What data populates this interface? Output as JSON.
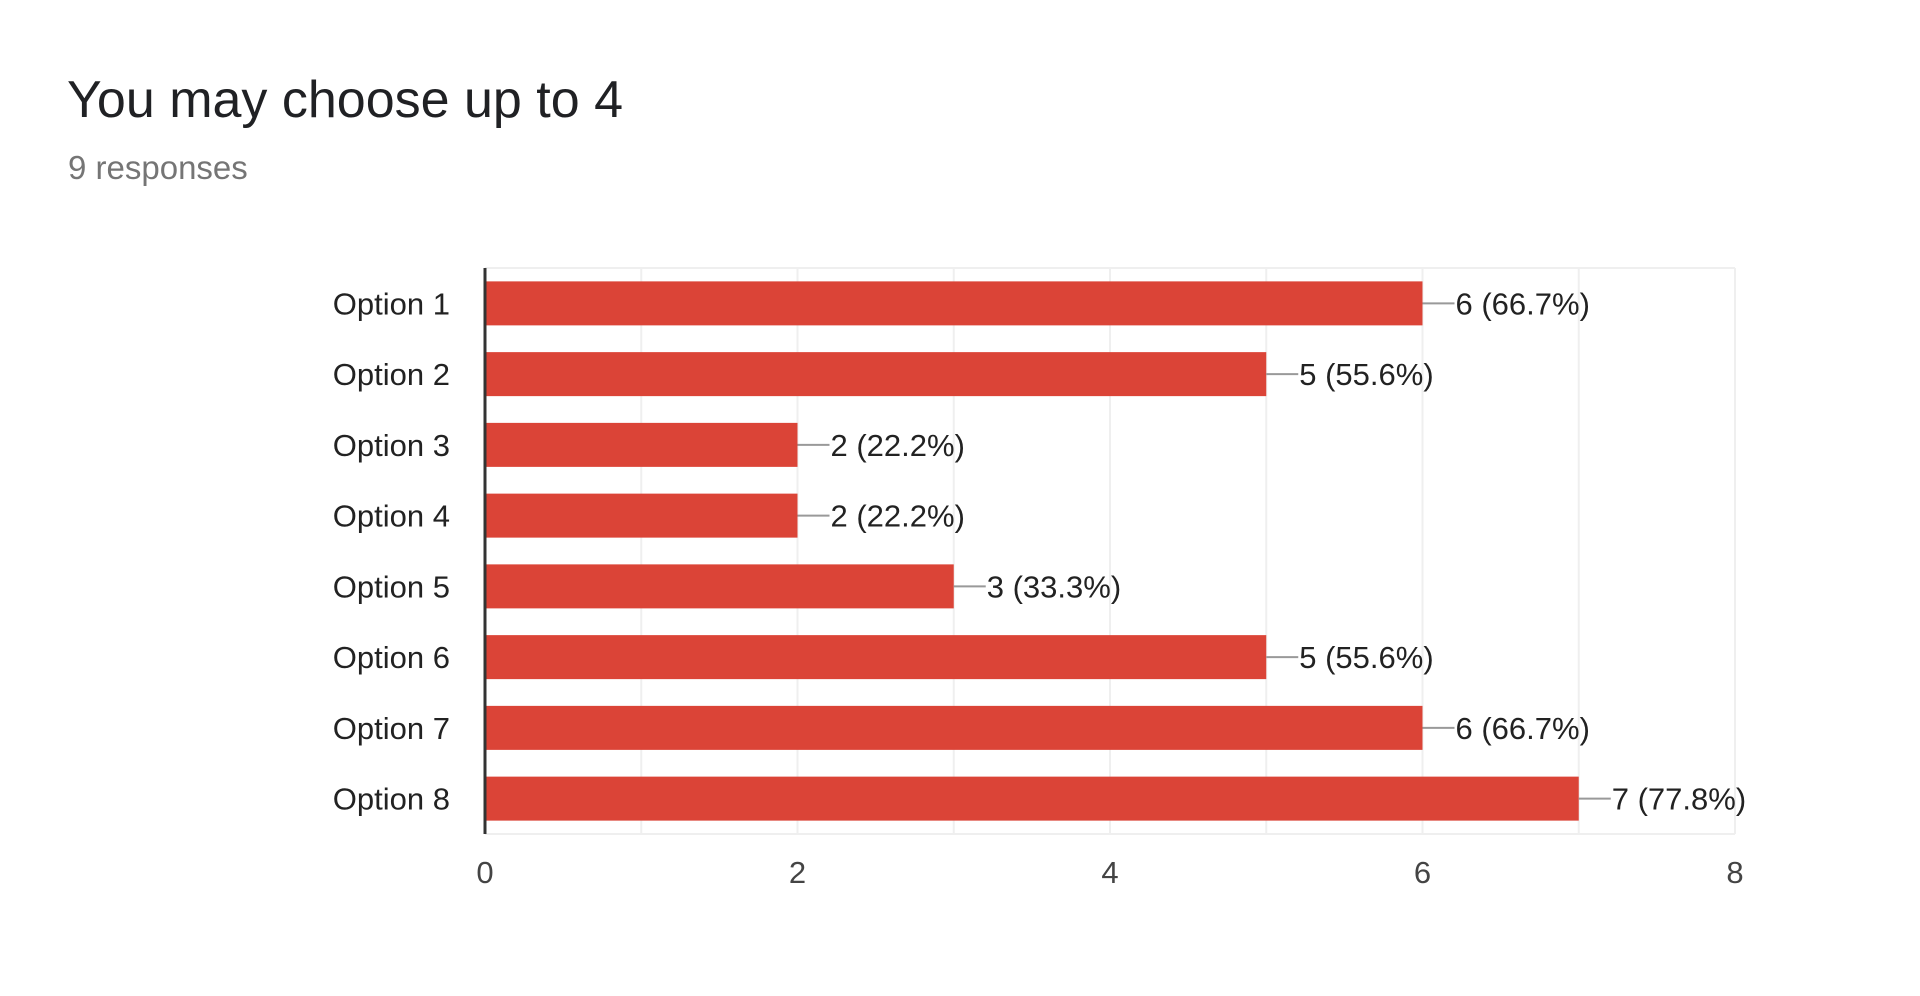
{
  "chart_data": {
    "type": "bar",
    "orientation": "horizontal",
    "title": "You may choose up to 4",
    "subtitle": "9 responses",
    "categories": [
      "Option 1",
      "Option 2",
      "Option 3",
      "Option 4",
      "Option 5",
      "Option 6",
      "Option 7",
      "Option 8"
    ],
    "values": [
      6,
      5,
      2,
      2,
      3,
      5,
      6,
      7
    ],
    "data_labels": [
      "6 (66.7%)",
      "5 (55.6%)",
      "2 (22.2%)",
      "2 (22.2%)",
      "3 (33.3%)",
      "5 (55.6%)",
      "6 (66.7%)",
      "7 (77.8%)"
    ],
    "xlim": [
      0,
      8
    ],
    "x_ticks": [
      0,
      2,
      4,
      6,
      8
    ],
    "xlabel": "",
    "ylabel": "",
    "grid": true,
    "legend": "none",
    "colors": {
      "bar": "#db4437",
      "grid": "#efefef",
      "axis": "#333333",
      "text": "#222222",
      "tick_text": "#444444",
      "leader": "#999999"
    }
  }
}
